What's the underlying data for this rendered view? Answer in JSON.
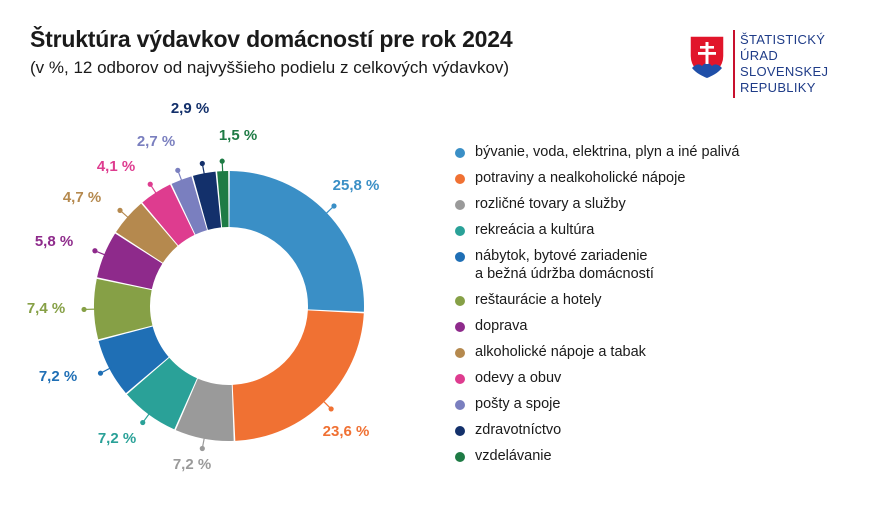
{
  "header": {
    "title": "Štruktúra výdavkov domácností pre rok 2024",
    "subtitle": "(v %, 12 odborov od najvyššieho podielu z celkových výdavkov)"
  },
  "logo": {
    "lines": [
      "ŠTATISTICKÝ",
      "ÚRAD",
      "SLOVENSKEJ",
      "REPUBLIKY"
    ],
    "icon": "slovak-coat-of-arms"
  },
  "chart_data": {
    "type": "pie",
    "variant": "donut",
    "unit": "%",
    "categories": [
      "bývanie, voda, elektrina, plyn a iné palivá",
      "potraviny a nealkoholické nápoje",
      "rozličné tovary a služby",
      "rekreácia a kultúra",
      "nábytok, bytové zariadenie\na bežná údržba domácností",
      "reštaurácie a hotely",
      "doprava",
      "alkoholické nápoje a tabak",
      "odevy a obuv",
      "pošty a spoje",
      "zdravotníctvo",
      "vzdelávanie"
    ],
    "values": [
      25.8,
      23.6,
      7.2,
      7.2,
      7.2,
      7.4,
      5.8,
      4.7,
      4.1,
      2.7,
      2.9,
      1.5
    ],
    "data_labels": [
      "25,8 %",
      "23,6 %",
      "7,2 %",
      "7,2 %",
      "7,2 %",
      "7,4 %",
      "5,8 %",
      "4,7 %",
      "4,1 %",
      "2,7 %",
      "2,9 %",
      "1,5 %"
    ],
    "colors": [
      "#3a8fc6",
      "#f07133",
      "#9a9a9a",
      "#2aa198",
      "#1f6fb5",
      "#86a046",
      "#8e2a8b",
      "#b5894e",
      "#de3c8f",
      "#7a7fbf",
      "#13306b",
      "#1e7b45"
    ],
    "legend_position": "right"
  }
}
